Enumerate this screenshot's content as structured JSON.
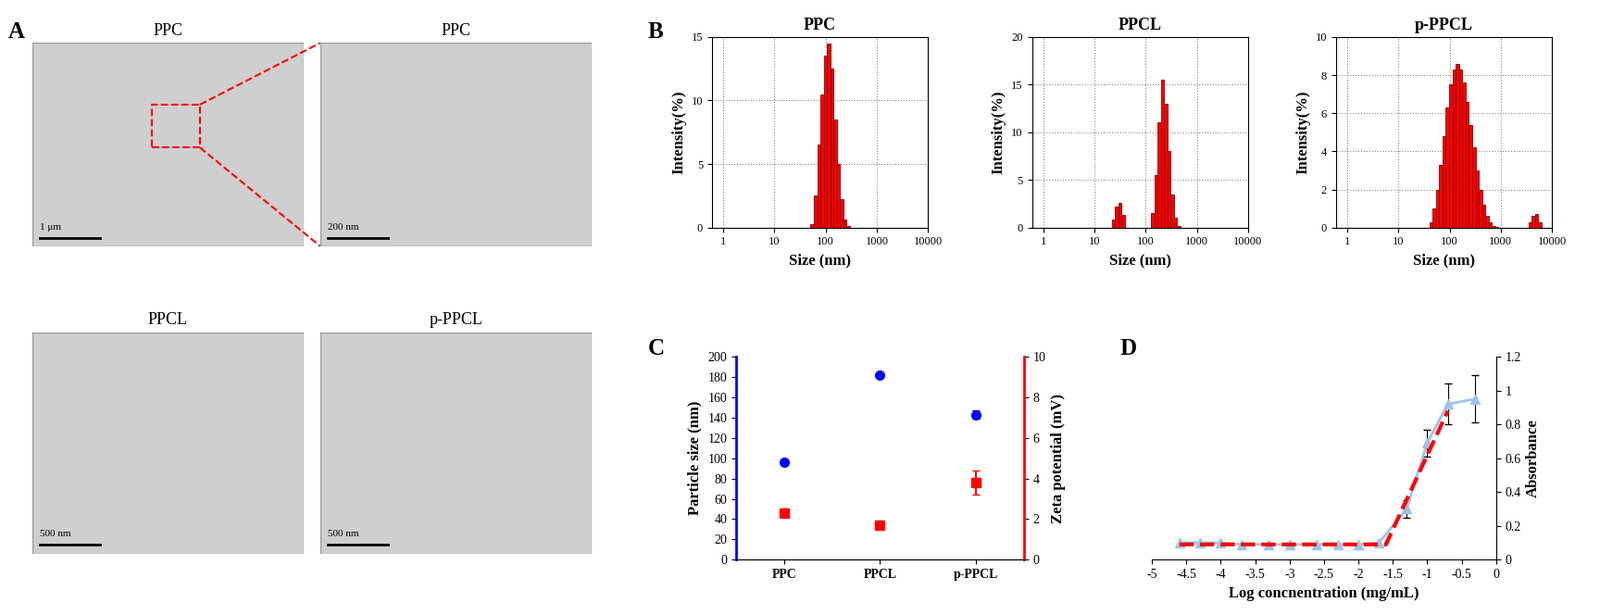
{
  "chart_data": [
    {
      "type": "image",
      "panel": "A",
      "images": [
        {
          "title": "PPC",
          "scale_bar": "1 μm"
        },
        {
          "title": "PPC",
          "scale_bar": "200 nm"
        },
        {
          "title": "PPCL",
          "scale_bar": "500 nm"
        },
        {
          "title": "p-PPCL",
          "scale_bar": "500 nm"
        }
      ]
    },
    {
      "type": "histogram",
      "panel": "B",
      "title": "PPC",
      "x_label": "Size (nm)",
      "y_label": "Intensity(%)",
      "log": "x",
      "grid": true,
      "color": "#ff0000",
      "bins": [
        50.7,
        58.8,
        68.1,
        78.8,
        91.3,
        105.7,
        122.4,
        141.8,
        164.2,
        190.1,
        220.2,
        255.0,
        295.3
      ],
      "counts": [
        0.3,
        2.5,
        6.5,
        10.5,
        13.5,
        14.5,
        12.5,
        8.5,
        5.0,
        2.2,
        0.6,
        0.1
      ],
      "xlim": [
        0.6,
        10000
      ],
      "xticks": [
        1,
        10,
        100,
        1000,
        10000
      ],
      "ylim": [
        0,
        15
      ],
      "yticks": [
        0,
        5,
        10,
        15
      ]
    },
    {
      "type": "histogram",
      "panel": "B",
      "title": "PPCL",
      "x_label": "Size (nm)",
      "y_label": "Intensity(%)",
      "log": "x",
      "grid": true,
      "color": "#ff0000",
      "bins": [
        21.9,
        25.4,
        29.4,
        34.0,
        39.4,
        45.6,
        52.8,
        61.2,
        70.9,
        82.1,
        95.1,
        110.1,
        127.5,
        147.7,
        171.0,
        198.0,
        229.3,
        265.6,
        307.6,
        356.2,
        412.5,
        477.7
      ],
      "counts": [
        0.8,
        2.2,
        2.6,
        1.3,
        0,
        0,
        0,
        0,
        0,
        0,
        0,
        0,
        1.5,
        5.5,
        11,
        15.5,
        13,
        8,
        3.5,
        1,
        0.2
      ],
      "xlim": [
        0.6,
        10000
      ],
      "xticks": [
        1,
        10,
        100,
        1000,
        10000
      ],
      "ylim": [
        0,
        20
      ],
      "yticks": [
        0,
        5,
        10,
        15,
        20
      ]
    },
    {
      "type": "histogram",
      "panel": "B",
      "title": "p-PPCL",
      "x_label": "Size (nm)",
      "y_label": "Intensity(%)",
      "log": "x",
      "grid": true,
      "color": "#ff0000",
      "bins": [
        40,
        46.4,
        53.8,
        62.4,
        72.4,
        84.0,
        97.4,
        113.0,
        131.1,
        152.1,
        176.4,
        204.6,
        237.4,
        275.4,
        319.4,
        370.5,
        429.8,
        498.6,
        578.3,
        670.9,
        778.2,
        902.7,
        1047,
        1215,
        1409,
        1635,
        1896,
        2200,
        2552,
        2960,
        3434,
        3983,
        4621,
        5360,
        6218
      ],
      "counts": [
        0.3,
        1.0,
        2.0,
        3.3,
        4.8,
        6.3,
        7.5,
        8.3,
        8.6,
        8.3,
        7.6,
        6.6,
        5.4,
        4.2,
        3.0,
        2.0,
        1.2,
        0.6,
        0.3,
        0.1,
        0.05,
        0,
        0,
        0,
        0,
        0,
        0,
        0,
        0,
        0,
        0.3,
        0.6,
        0.7,
        0.3
      ],
      "xlim": [
        0.6,
        10000
      ],
      "xticks": [
        1,
        10,
        100,
        1000,
        10000
      ],
      "ylim": [
        0,
        10
      ],
      "yticks": [
        0,
        2,
        4,
        6,
        8,
        10
      ]
    },
    {
      "type": "scatter",
      "panel": "C",
      "categories": [
        "PPC",
        "PPCL",
        "p-PPCL"
      ],
      "y_label": "Particle size (nm)",
      "y2_label": "Zeta potential (mV)",
      "ylim": [
        0,
        200
      ],
      "yticks": [
        0,
        20,
        40,
        60,
        80,
        100,
        120,
        140,
        160,
        180,
        200
      ],
      "y2lim": [
        0,
        10
      ],
      "y2ticks": [
        0,
        2,
        4,
        6,
        8,
        10
      ],
      "series": [
        {
          "color": "#0000ff",
          "marker": "circle",
          "values": [
            96,
            182,
            143
          ],
          "errors": [
            3,
            2,
            4
          ]
        },
        {
          "color": "#ff0000",
          "marker": "square",
          "axis": "y2",
          "values": [
            2.3,
            1.7,
            3.8
          ],
          "errors": [
            0.2,
            0.1,
            0.6
          ]
        }
      ]
    },
    {
      "type": "line",
      "panel": "D",
      "x_label": "Log concnentration (mg/mL)",
      "y_label": "Absorbance",
      "xlim": [
        -5,
        0
      ],
      "xticks": [
        -5,
        -4.5,
        -4,
        -3.5,
        -3,
        -2.5,
        -2,
        -1.5,
        -1,
        -0.5,
        0
      ],
      "ylim": [
        0,
        1.2
      ],
      "yticks": [
        0,
        0.2,
        0.4,
        0.6,
        0.8,
        1,
        1.2
      ],
      "series": [
        {
          "color": "#9dc3e6",
          "marker": "triangle",
          "line_style": "solid",
          "x": [
            -4.6,
            -4.3,
            -4.0,
            -3.7,
            -3.3,
            -3.0,
            -2.6,
            -2.3,
            -2.0,
            -1.7,
            -1.3,
            -1.0,
            -0.7,
            -0.3
          ],
          "values": [
            0.1,
            0.1,
            0.1,
            0.09,
            0.09,
            0.09,
            0.09,
            0.09,
            0.09,
            0.1,
            0.3,
            0.69,
            0.92,
            0.95
          ],
          "errors": [
            null,
            null,
            null,
            null,
            null,
            null,
            null,
            null,
            null,
            null,
            0.05,
            0.08,
            0.12,
            0.14
          ]
        },
        {
          "color": "#ff0000",
          "line_style": "dashed",
          "x": [
            -4.6,
            -1.6,
            -0.7
          ],
          "values": [
            0.09,
            0.09,
            0.88
          ]
        }
      ]
    }
  ]
}
